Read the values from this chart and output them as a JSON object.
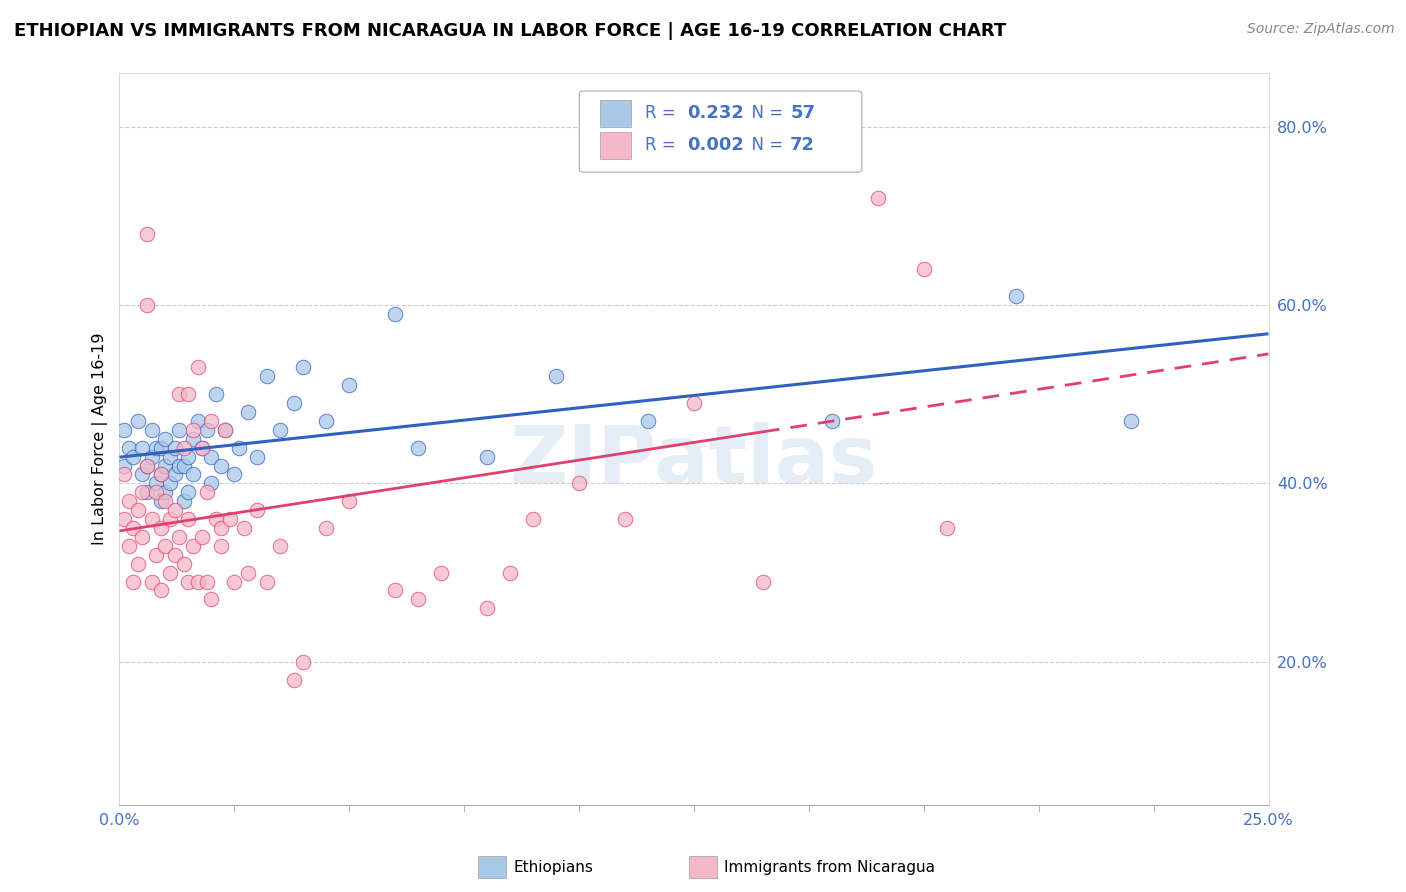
{
  "title": "ETHIOPIAN VS IMMIGRANTS FROM NICARAGUA IN LABOR FORCE | AGE 16-19 CORRELATION CHART",
  "source": "Source: ZipAtlas.com",
  "ylabel": "In Labor Force | Age 16-19",
  "xlim": [
    0.0,
    0.25
  ],
  "ylim": [
    0.04,
    0.86
  ],
  "yticks": [
    0.2,
    0.4,
    0.6,
    0.8
  ],
  "ytick_labels": [
    "20.0%",
    "40.0%",
    "60.0%",
    "80.0%"
  ],
  "xtick_labels": [
    "0.0%",
    "25.0%"
  ],
  "color_blue": "#a8c8e8",
  "color_pink": "#f4b8c8",
  "color_blue_line": "#3060c0",
  "color_pink_line": "#e04070",
  "watermark": "ZIPatlas",
  "blue_scatter_x": [
    0.001,
    0.001,
    0.002,
    0.003,
    0.004,
    0.005,
    0.005,
    0.006,
    0.006,
    0.007,
    0.007,
    0.008,
    0.008,
    0.009,
    0.009,
    0.009,
    0.01,
    0.01,
    0.01,
    0.011,
    0.011,
    0.012,
    0.012,
    0.013,
    0.013,
    0.014,
    0.014,
    0.015,
    0.015,
    0.016,
    0.016,
    0.017,
    0.018,
    0.019,
    0.02,
    0.02,
    0.021,
    0.022,
    0.023,
    0.025,
    0.026,
    0.028,
    0.03,
    0.032,
    0.035,
    0.038,
    0.04,
    0.045,
    0.05,
    0.06,
    0.065,
    0.08,
    0.095,
    0.115,
    0.155,
    0.195,
    0.22
  ],
  "blue_scatter_y": [
    0.42,
    0.46,
    0.44,
    0.43,
    0.47,
    0.41,
    0.44,
    0.39,
    0.42,
    0.43,
    0.46,
    0.4,
    0.44,
    0.38,
    0.41,
    0.44,
    0.39,
    0.42,
    0.45,
    0.4,
    0.43,
    0.41,
    0.44,
    0.42,
    0.46,
    0.38,
    0.42,
    0.39,
    0.43,
    0.41,
    0.45,
    0.47,
    0.44,
    0.46,
    0.4,
    0.43,
    0.5,
    0.42,
    0.46,
    0.41,
    0.44,
    0.48,
    0.43,
    0.52,
    0.46,
    0.49,
    0.53,
    0.47,
    0.51,
    0.59,
    0.44,
    0.43,
    0.52,
    0.47,
    0.47,
    0.61,
    0.47
  ],
  "pink_scatter_x": [
    0.001,
    0.001,
    0.002,
    0.002,
    0.003,
    0.003,
    0.004,
    0.004,
    0.005,
    0.005,
    0.006,
    0.006,
    0.007,
    0.007,
    0.008,
    0.008,
    0.009,
    0.009,
    0.01,
    0.01,
    0.011,
    0.011,
    0.012,
    0.012,
    0.013,
    0.013,
    0.014,
    0.014,
    0.015,
    0.015,
    0.016,
    0.016,
    0.017,
    0.017,
    0.018,
    0.018,
    0.019,
    0.019,
    0.02,
    0.02,
    0.021,
    0.022,
    0.022,
    0.024,
    0.025,
    0.027,
    0.03,
    0.032,
    0.035,
    0.04,
    0.045,
    0.05,
    0.06,
    0.07,
    0.08,
    0.09,
    0.1,
    0.11,
    0.125,
    0.14,
    0.155,
    0.165,
    0.175,
    0.18,
    0.065,
    0.085,
    0.038,
    0.023,
    0.028,
    0.015,
    0.006,
    0.009
  ],
  "pink_scatter_y": [
    0.41,
    0.36,
    0.33,
    0.38,
    0.29,
    0.35,
    0.31,
    0.37,
    0.34,
    0.39,
    0.42,
    0.6,
    0.29,
    0.36,
    0.32,
    0.39,
    0.35,
    0.41,
    0.33,
    0.38,
    0.3,
    0.36,
    0.32,
    0.37,
    0.34,
    0.5,
    0.44,
    0.31,
    0.29,
    0.36,
    0.33,
    0.46,
    0.29,
    0.53,
    0.34,
    0.44,
    0.29,
    0.39,
    0.27,
    0.47,
    0.36,
    0.35,
    0.33,
    0.36,
    0.29,
    0.35,
    0.37,
    0.29,
    0.33,
    0.2,
    0.35,
    0.38,
    0.28,
    0.3,
    0.26,
    0.36,
    0.4,
    0.36,
    0.49,
    0.29,
    0.8,
    0.72,
    0.64,
    0.35,
    0.27,
    0.3,
    0.18,
    0.46,
    0.3,
    0.5,
    0.68,
    0.28
  ]
}
